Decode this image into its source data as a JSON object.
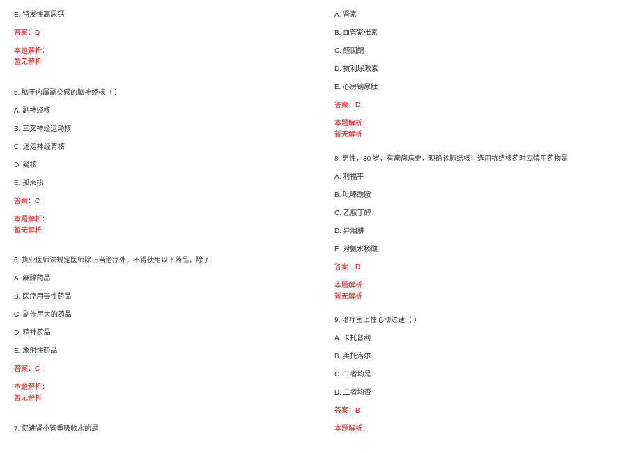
{
  "colors": {
    "text": "#333333",
    "answer": "#ff0000",
    "background": "#ffffff"
  },
  "typography": {
    "fontSize": 10,
    "lineHeight": 1.4,
    "fontFamily": "Microsoft YaHei, SimSun, Arial, sans-serif"
  },
  "left": {
    "q4_optE": "E. 特发性高尿钙",
    "q4_answer": "答案：D",
    "q4_explain_label": "本题解析：",
    "q4_explain_text": "暂无解析",
    "q5_stem": "5. 脑干内属副交感的脑神经核（ ）",
    "q5_optA": "A. 副神经核",
    "q5_optB": "B. 三叉神经运动核",
    "q5_optC": "C. 迷走神经背核",
    "q5_optD": "D. 疑核",
    "q5_optE": "E. 孤束核",
    "q5_answer": "答案：C",
    "q5_explain_label": "本题解析：",
    "q5_explain_text": "暂无解析",
    "q6_stem": "6. 执业医师法规定医师除正当治疗外，不得使用以下药品，除了",
    "q6_optA": "A. 麻醉药品",
    "q6_optB": "B. 医疗用毒性药品",
    "q6_optC": "C. 副作用大的药品",
    "q6_optD": "D. 精神药品",
    "q6_optE": "E. 放射性药品",
    "q6_answer": "答案：C",
    "q6_explain_label": "本题解析：",
    "q6_explain_text": "暂无解析",
    "q7_stem": "7. 促进肾小管重吸收水的是"
  },
  "right": {
    "q7_optA": "A. 肾素",
    "q7_optB": "B. 血管紧张素",
    "q7_optC": "C. 醛固酮",
    "q7_optD": "D. 抗利尿激素",
    "q7_optE": "E. 心房钠尿肽",
    "q7_answer": "答案：D",
    "q7_explain_label": "本题解析：",
    "q7_explain_text": "暂无解析",
    "q8_stem": "8. 男性，30 岁，有癫痫病史，现确诊肺结核，选用抗结核药时应慎用药物是",
    "q8_optA": "A. 利福平",
    "q8_optB": "B. 吡嗪酰胺",
    "q8_optC": "C. 乙胺丁醇",
    "q8_optD": "D. 异烟肼",
    "q8_optE": "E. 对氨水杨酸",
    "q8_answer": "答案：D",
    "q8_explain_label": "本题解析：",
    "q8_explain_text": "暂无解析",
    "q9_stem": "9. 治疗室上性心动过速（ ）",
    "q9_optA": "A. 卡托普利",
    "q9_optB": "B. 美托洛尔",
    "q9_optC": "C. 二者均是",
    "q9_optD": "D. 二者均否",
    "q9_answer": "答案：B",
    "q9_explain_label": "本题解析："
  }
}
